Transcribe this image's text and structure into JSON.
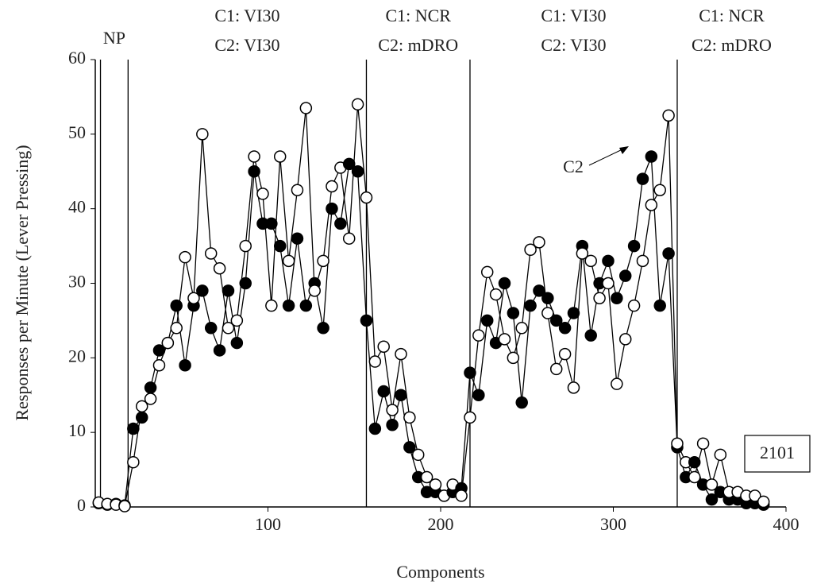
{
  "chart_data": {
    "type": "scatter",
    "xlabel": "Components",
    "ylabel": "Responses per Minute (Lever Pressing)",
    "xlim": [
      0,
      400
    ],
    "ylim": [
      0,
      60
    ],
    "xticks": [
      100,
      200,
      300,
      400
    ],
    "yticks": [
      0,
      10,
      20,
      30,
      40,
      50,
      60
    ],
    "x": [
      2,
      7,
      12,
      17,
      22,
      27,
      32,
      37,
      42,
      47,
      52,
      57,
      62,
      67,
      72,
      77,
      82,
      87,
      92,
      97,
      102,
      107,
      112,
      117,
      122,
      127,
      132,
      137,
      142,
      147,
      152,
      157,
      162,
      167,
      172,
      177,
      182,
      187,
      192,
      197,
      202,
      207,
      212,
      217,
      222,
      227,
      232,
      237,
      242,
      247,
      252,
      257,
      262,
      267,
      272,
      277,
      282,
      287,
      292,
      297,
      302,
      307,
      312,
      317,
      322,
      327,
      332,
      337,
      342,
      347,
      352,
      357,
      362,
      367,
      372,
      377,
      382,
      387
    ],
    "series": [
      {
        "color": "#000000",
        "values": [
          0.5,
          0.3,
          0.4,
          0.2,
          10.5,
          12,
          16,
          21,
          22,
          27,
          19,
          27,
          29,
          24,
          21,
          29,
          22,
          30,
          45,
          38,
          38,
          35,
          27,
          36,
          27,
          30,
          24,
          40,
          38,
          46,
          45,
          25,
          10.5,
          15.5,
          11,
          15,
          8,
          4,
          2,
          2,
          1.5,
          2,
          2.5,
          18,
          15,
          25,
          22,
          30,
          26,
          14,
          27,
          29,
          28,
          25,
          24,
          26,
          35,
          23,
          30,
          33,
          28,
          31,
          35,
          44,
          47,
          27,
          34,
          8,
          4,
          6,
          3,
          1,
          2,
          1,
          1,
          0.5,
          0.5,
          0.3
        ]
      },
      {
        "color": "#ffffff",
        "values": [
          0.6,
          0.4,
          0.3,
          0.1,
          6,
          13.5,
          14.5,
          19,
          22,
          24,
          33.5,
          28,
          50,
          34,
          32,
          24,
          25,
          35,
          47,
          42,
          27,
          47,
          33,
          42.5,
          53.5,
          29,
          33,
          43,
          45.5,
          36,
          54,
          41.5,
          19.5,
          21.5,
          13,
          20.5,
          12,
          7,
          4,
          3,
          1.5,
          3,
          1.5,
          12,
          23,
          31.5,
          28.5,
          22.5,
          20,
          24,
          34.5,
          35.5,
          26,
          18.5,
          20.5,
          16,
          34,
          33,
          28,
          30,
          16.5,
          22.5,
          27,
          33,
          40.5,
          42.5,
          52.5,
          8.5,
          6,
          4,
          8.5,
          3,
          7,
          2,
          2,
          1.5,
          1.5,
          0.7
        ]
      }
    ],
    "phases": [
      {
        "start": 3,
        "labels": [
          "NP"
        ]
      },
      {
        "start": 19,
        "labels": [
          "C1: VI30",
          "C2: VI30"
        ]
      },
      {
        "start": 157,
        "labels": [
          "C1: NCR",
          "C2: mDRO"
        ]
      },
      {
        "start": 217,
        "labels": [
          "C1: VI30",
          "C2: VI30"
        ]
      },
      {
        "start": 337,
        "labels": [
          "C1: NCR",
          "C2: mDRO"
        ]
      }
    ],
    "annotations": {
      "arrow_label": "C2",
      "subject_id": "2101"
    }
  }
}
